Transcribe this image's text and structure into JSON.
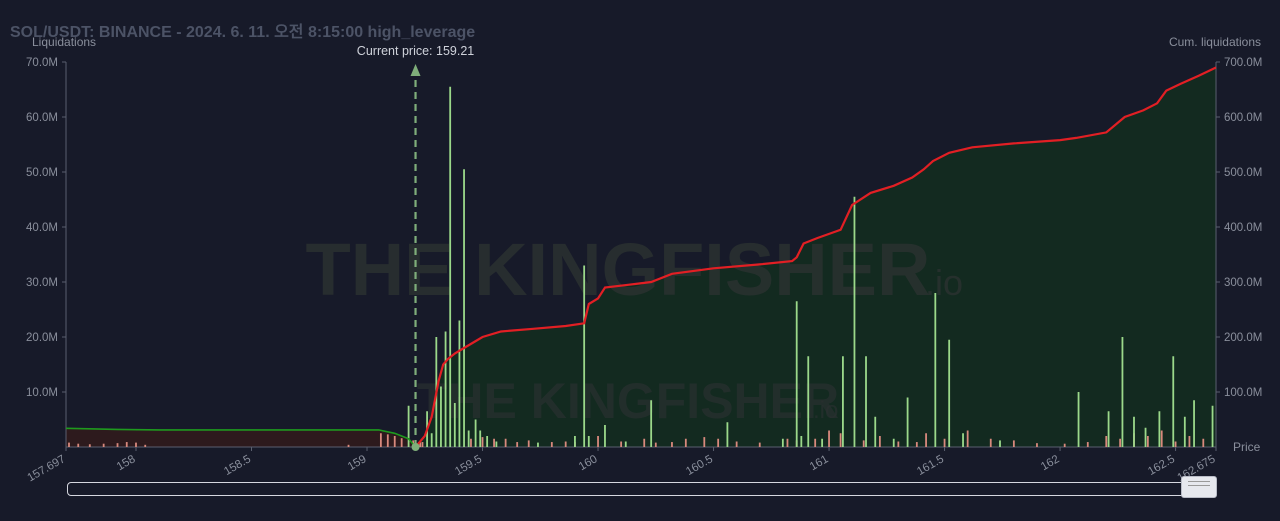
{
  "header": {
    "title": "SOL/USDT: BINANCE - 2024. 6. 11. 오전 8:15:00 high_leverage"
  },
  "watermark": {
    "brand": "THE KINGFISHER",
    "suffix": ".io"
  },
  "colors": {
    "background": "#171a29",
    "cum_line": "#e21f24",
    "cum_fill": "#132a20",
    "long_fill": "#2d1a1d",
    "long_line": "#1e9a1e",
    "short_bar": "#9bd98a",
    "long_bar": "#d8897d",
    "current_price": "#7fae7a"
  },
  "chart_data": {
    "type": "bar",
    "xlabel": "Price",
    "ylabel_left": "Liquidations",
    "ylabel_right": "Cum. liquidations",
    "xlim": [
      157.697,
      162.675
    ],
    "ylim_left": [
      0,
      70
    ],
    "ylim_right": [
      0,
      700
    ],
    "y_units": "M",
    "x_ticks": [
      {
        "value": 157.697,
        "label": "157.697"
      },
      {
        "value": 158,
        "label": "158"
      },
      {
        "value": 158.5,
        "label": "158.5"
      },
      {
        "value": 159,
        "label": "159"
      },
      {
        "value": 159.5,
        "label": "159.5"
      },
      {
        "value": 160,
        "label": "160"
      },
      {
        "value": 160.5,
        "label": "160.5"
      },
      {
        "value": 161,
        "label": "161"
      },
      {
        "value": 161.5,
        "label": "161.5"
      },
      {
        "value": 162,
        "label": "162"
      },
      {
        "value": 162.5,
        "label": "162.5"
      },
      {
        "value": 162.675,
        "label": "162.675"
      }
    ],
    "y_ticks_left": [
      {
        "value": 10,
        "label": "10.0M"
      },
      {
        "value": 20,
        "label": "20.0M"
      },
      {
        "value": 30,
        "label": "30.0M"
      },
      {
        "value": 40,
        "label": "40.0M"
      },
      {
        "value": 50,
        "label": "50.0M"
      },
      {
        "value": 60,
        "label": "60.0M"
      },
      {
        "value": 70,
        "label": "70.0M"
      }
    ],
    "y_ticks_right": [
      {
        "value": 100,
        "label": "100.0M"
      },
      {
        "value": 200,
        "label": "200.0M"
      },
      {
        "value": 300,
        "label": "300.0M"
      },
      {
        "value": 400,
        "label": "400.0M"
      },
      {
        "value": 500,
        "label": "500.0M"
      },
      {
        "value": 600,
        "label": "600.0M"
      },
      {
        "value": 700,
        "label": "700.0M"
      }
    ],
    "current_price": {
      "value": 159.21,
      "label": "Current price: 159.21"
    },
    "series": [
      {
        "kind": "short_liquidations",
        "bars": [
          [
            159.18,
            7.5
          ],
          [
            159.26,
            6.5
          ],
          [
            159.28,
            2.5
          ],
          [
            159.3,
            20
          ],
          [
            159.32,
            11
          ],
          [
            159.34,
            21
          ],
          [
            159.36,
            65.5
          ],
          [
            159.38,
            8
          ],
          [
            159.4,
            23
          ],
          [
            159.42,
            50.5
          ],
          [
            159.44,
            3
          ],
          [
            159.47,
            5
          ],
          [
            159.49,
            3
          ],
          [
            159.52,
            2
          ],
          [
            159.56,
            1
          ],
          [
            159.74,
            0.8
          ],
          [
            159.9,
            2
          ],
          [
            159.94,
            33
          ],
          [
            159.96,
            2
          ],
          [
            160.03,
            4
          ],
          [
            160.12,
            1
          ],
          [
            160.23,
            8.5
          ],
          [
            160.56,
            4.5
          ],
          [
            160.8,
            1.5
          ],
          [
            160.86,
            26.5
          ],
          [
            160.88,
            2
          ],
          [
            160.91,
            16.5
          ],
          [
            160.97,
            1.5
          ],
          [
            161.06,
            16.5
          ],
          [
            161.11,
            45.5
          ],
          [
            161.16,
            16.5
          ],
          [
            161.2,
            5.5
          ],
          [
            161.28,
            1.5
          ],
          [
            161.34,
            9
          ],
          [
            161.46,
            28
          ],
          [
            161.52,
            19.5
          ],
          [
            161.58,
            2.5
          ],
          [
            161.74,
            1.2
          ],
          [
            162.08,
            10
          ],
          [
            162.21,
            6.5
          ],
          [
            162.27,
            20
          ],
          [
            162.32,
            5.5
          ],
          [
            162.37,
            3.5
          ],
          [
            162.43,
            6.5
          ],
          [
            162.49,
            16.5
          ],
          [
            162.54,
            5.5
          ],
          [
            162.58,
            8.5
          ],
          [
            162.66,
            7.5
          ]
        ]
      },
      {
        "kind": "long_liquidations",
        "bars": [
          [
            157.71,
            0.8
          ],
          [
            157.75,
            0.6
          ],
          [
            157.8,
            0.5
          ],
          [
            157.86,
            0.6
          ],
          [
            157.92,
            0.7
          ],
          [
            157.96,
            0.9
          ],
          [
            158.0,
            0.8
          ],
          [
            158.04,
            0.4
          ],
          [
            158.92,
            0.4
          ],
          [
            159.06,
            2.5
          ],
          [
            159.09,
            2.3
          ],
          [
            159.12,
            2.0
          ],
          [
            159.15,
            1.6
          ],
          [
            159.2,
            1.2
          ],
          [
            159.23,
            0.9
          ],
          [
            159.24,
            0.9
          ],
          [
            159.45,
            1.5
          ],
          [
            159.5,
            1.8
          ],
          [
            159.55,
            1.5
          ],
          [
            159.6,
            1.5
          ],
          [
            159.65,
            0.9
          ],
          [
            159.7,
            1.2
          ],
          [
            159.8,
            0.9
          ],
          [
            159.86,
            1.0
          ],
          [
            159.9,
            0.9
          ],
          [
            160.0,
            2.0
          ],
          [
            160.1,
            1.0
          ],
          [
            160.2,
            1.5
          ],
          [
            160.25,
            0.8
          ],
          [
            160.32,
            0.9
          ],
          [
            160.38,
            1.5
          ],
          [
            160.46,
            1.8
          ],
          [
            160.52,
            1.5
          ],
          [
            160.6,
            1.0
          ],
          [
            160.7,
            0.8
          ],
          [
            160.82,
            1.5
          ],
          [
            160.86,
            1.2
          ],
          [
            160.94,
            1.5
          ],
          [
            161.0,
            3.0
          ],
          [
            161.05,
            2.5
          ],
          [
            161.15,
            1.2
          ],
          [
            161.22,
            2.0
          ],
          [
            161.3,
            1.0
          ],
          [
            161.38,
            0.9
          ],
          [
            161.42,
            2.5
          ],
          [
            161.5,
            1.5
          ],
          [
            161.6,
            3.0
          ],
          [
            161.7,
            1.5
          ],
          [
            161.8,
            1.2
          ],
          [
            161.9,
            0.7
          ],
          [
            162.02,
            0.6
          ],
          [
            162.12,
            0.9
          ],
          [
            162.2,
            2.0
          ],
          [
            162.26,
            1.5
          ],
          [
            162.32,
            2.5
          ],
          [
            162.38,
            2.0
          ],
          [
            162.44,
            3.0
          ],
          [
            162.5,
            1.0
          ],
          [
            162.56,
            2.0
          ],
          [
            162.62,
            1.5
          ]
        ]
      },
      {
        "kind": "cum_short_liquidations",
        "points": [
          [
            159.21,
            0
          ],
          [
            159.25,
            20
          ],
          [
            159.28,
            55
          ],
          [
            159.31,
            120
          ],
          [
            159.33,
            150
          ],
          [
            159.35,
            160
          ],
          [
            159.38,
            170
          ],
          [
            159.42,
            180
          ],
          [
            159.46,
            190
          ],
          [
            159.5,
            200
          ],
          [
            159.58,
            210
          ],
          [
            159.72,
            215
          ],
          [
            159.86,
            220
          ],
          [
            159.94,
            225
          ],
          [
            159.96,
            260
          ],
          [
            160.0,
            270
          ],
          [
            160.03,
            290
          ],
          [
            160.13,
            295
          ],
          [
            160.23,
            300
          ],
          [
            160.32,
            315
          ],
          [
            160.5,
            325
          ],
          [
            160.7,
            332
          ],
          [
            160.84,
            338
          ],
          [
            160.86,
            345
          ],
          [
            160.89,
            370
          ],
          [
            160.95,
            380
          ],
          [
            161.05,
            395
          ],
          [
            161.1,
            440
          ],
          [
            161.18,
            462
          ],
          [
            161.28,
            475
          ],
          [
            161.36,
            490
          ],
          [
            161.41,
            505
          ],
          [
            161.45,
            520
          ],
          [
            161.52,
            535
          ],
          [
            161.62,
            545
          ],
          [
            161.8,
            552
          ],
          [
            162.0,
            558
          ],
          [
            162.07,
            562
          ],
          [
            162.2,
            572
          ],
          [
            162.28,
            600
          ],
          [
            162.36,
            612
          ],
          [
            162.42,
            625
          ],
          [
            162.46,
            648
          ],
          [
            162.52,
            660
          ],
          [
            162.6,
            675
          ],
          [
            162.675,
            690
          ]
        ]
      },
      {
        "kind": "cum_long_liquidations",
        "points": [
          [
            157.697,
            34
          ],
          [
            157.92,
            32
          ],
          [
            158.1,
            31
          ],
          [
            158.5,
            31
          ],
          [
            158.9,
            31
          ],
          [
            159.05,
            31
          ],
          [
            159.12,
            25
          ],
          [
            159.18,
            15
          ],
          [
            159.21,
            0
          ]
        ]
      }
    ]
  }
}
